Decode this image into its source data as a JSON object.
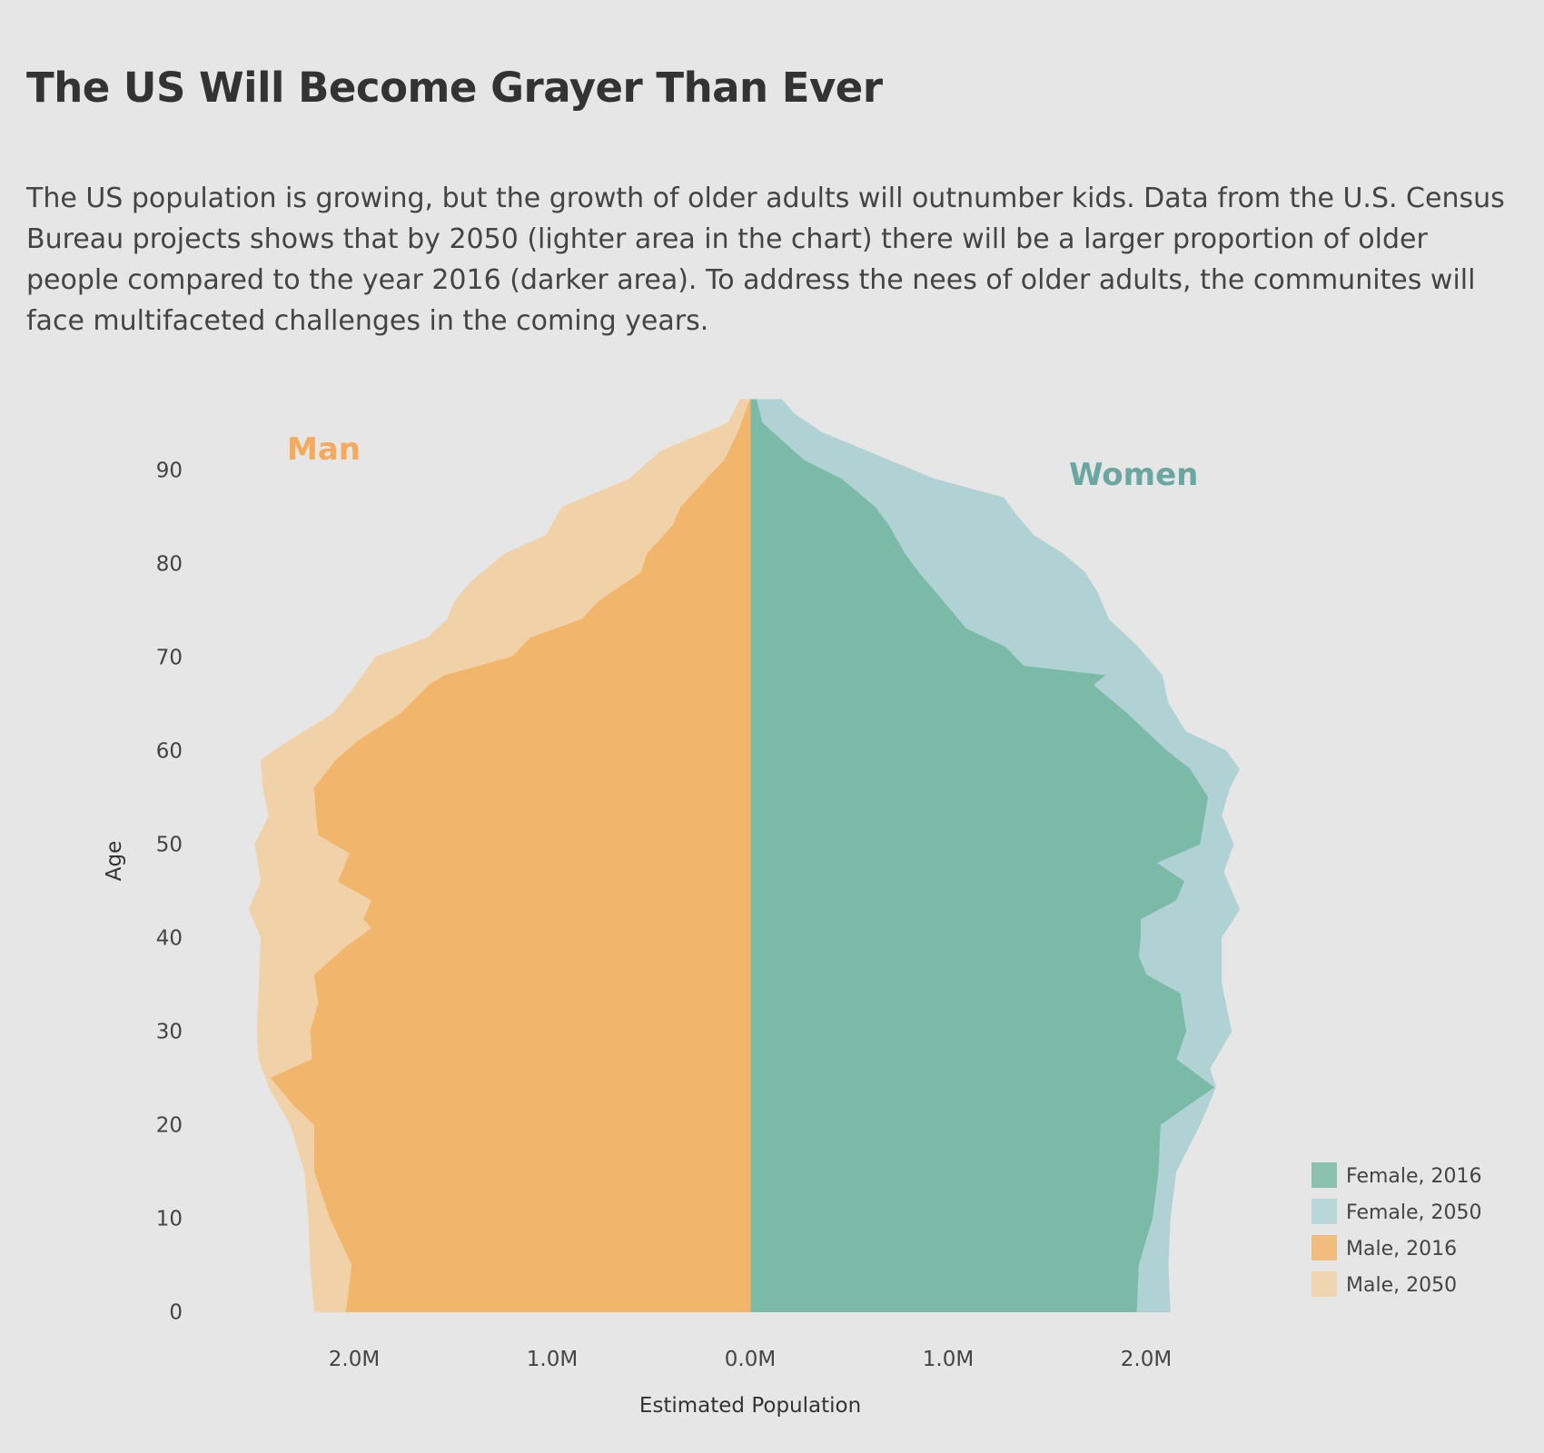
{
  "title": "The US Will Become Grayer Than Ever",
  "subtitle": "The US population is growing, but the growth of older adults will outnumber kids. Data from the U.S. Census Bureau projects shows that by 2050 (lighter area in the chart) there will be a larger proportion of older people compared to the year 2016 (darker area). To address the nees of older adults,  the communites will face multifaceted challenges in the coming years.",
  "colors": {
    "background": "#e6e6e6",
    "female_2016": "#7bbaa6",
    "female_2050": "#b0d2d5",
    "male_2016": "#f1b56c",
    "male_2050": "#f1d1a7",
    "man_label": "#f5a95a",
    "women_label": "#6aa7a1"
  },
  "chart_data": {
    "type": "area",
    "chart_kind": "population pyramid",
    "side_labels": {
      "left": "Man",
      "right": "Women"
    },
    "xlabel": "Estimated Population",
    "ylabel": "Age",
    "x_ticks": [
      "2.0M",
      "1.0M",
      "0.0M",
      "1.0M",
      "2.0M"
    ],
    "y_ticks": [
      0,
      10,
      20,
      30,
      40,
      50,
      60,
      70,
      80,
      90
    ],
    "xlim_millions": [
      -2.45,
      2.45
    ],
    "ylim": [
      -1.5,
      97.5
    ],
    "legend_position": "bottom-right",
    "legend": [
      "Female, 2016",
      "Female, 2050",
      "Male, 2016",
      "Male, 2050"
    ],
    "units": "millions of people",
    "series": [
      {
        "name": "Female, 2016",
        "side": "right",
        "points": [
          [
            0,
            1.95
          ],
          [
            5,
            1.96
          ],
          [
            10,
            2.03
          ],
          [
            15,
            2.06
          ],
          [
            20,
            2.07
          ],
          [
            24,
            2.34
          ],
          [
            27,
            2.15
          ],
          [
            30,
            2.2
          ],
          [
            34,
            2.17
          ],
          [
            36,
            2.0
          ],
          [
            38,
            1.96
          ],
          [
            40,
            1.97
          ],
          [
            42,
            1.97
          ],
          [
            44,
            2.15
          ],
          [
            46,
            2.19
          ],
          [
            48,
            2.05
          ],
          [
            50,
            2.27
          ],
          [
            55,
            2.31
          ],
          [
            58,
            2.22
          ],
          [
            60,
            2.1
          ],
          [
            64,
            1.9
          ],
          [
            67,
            1.73
          ],
          [
            68,
            1.79
          ],
          [
            69,
            1.38
          ],
          [
            71,
            1.29
          ],
          [
            73,
            1.09
          ],
          [
            76,
            0.97
          ],
          [
            79,
            0.85
          ],
          [
            81,
            0.78
          ],
          [
            84,
            0.7
          ],
          [
            86,
            0.63
          ],
          [
            89,
            0.46
          ],
          [
            91,
            0.27
          ],
          [
            95,
            0.06
          ],
          [
            97.5,
            0.03
          ]
        ]
      },
      {
        "name": "Female, 2050",
        "side": "right",
        "points": [
          [
            0,
            2.12
          ],
          [
            5,
            2.11
          ],
          [
            10,
            2.12
          ],
          [
            15,
            2.15
          ],
          [
            20,
            2.27
          ],
          [
            24,
            2.35
          ],
          [
            26,
            2.32
          ],
          [
            30,
            2.43
          ],
          [
            35,
            2.38
          ],
          [
            40,
            2.38
          ],
          [
            43,
            2.47
          ],
          [
            47,
            2.39
          ],
          [
            50,
            2.44
          ],
          [
            53,
            2.38
          ],
          [
            56,
            2.42
          ],
          [
            58,
            2.47
          ],
          [
            60,
            2.4
          ],
          [
            62,
            2.2
          ],
          [
            65,
            2.11
          ],
          [
            68,
            2.08
          ],
          [
            71,
            1.96
          ],
          [
            74,
            1.81
          ],
          [
            77,
            1.75
          ],
          [
            79,
            1.69
          ],
          [
            81,
            1.58
          ],
          [
            83,
            1.43
          ],
          [
            85,
            1.35
          ],
          [
            87,
            1.28
          ],
          [
            89,
            0.93
          ],
          [
            91,
            0.7
          ],
          [
            94,
            0.36
          ],
          [
            96,
            0.22
          ],
          [
            97.5,
            0.16
          ]
        ]
      },
      {
        "name": "Male, 2016",
        "side": "left",
        "points": [
          [
            0,
            2.04
          ],
          [
            5,
            2.01
          ],
          [
            10,
            2.12
          ],
          [
            15,
            2.2
          ],
          [
            20,
            2.2
          ],
          [
            22,
            2.3
          ],
          [
            25,
            2.42
          ],
          [
            27,
            2.21
          ],
          [
            30,
            2.22
          ],
          [
            33,
            2.18
          ],
          [
            36,
            2.2
          ],
          [
            39,
            2.04
          ],
          [
            41,
            1.91
          ],
          [
            42,
            1.95
          ],
          [
            44,
            1.91
          ],
          [
            46,
            2.08
          ],
          [
            49,
            2.02
          ],
          [
            51,
            2.18
          ],
          [
            53,
            2.19
          ],
          [
            56,
            2.2
          ],
          [
            59,
            2.09
          ],
          [
            61,
            1.98
          ],
          [
            64,
            1.76
          ],
          [
            67,
            1.62
          ],
          [
            68,
            1.54
          ],
          [
            70,
            1.2
          ],
          [
            72,
            1.11
          ],
          [
            74,
            0.85
          ],
          [
            76,
            0.76
          ],
          [
            79,
            0.55
          ],
          [
            81,
            0.52
          ],
          [
            84,
            0.39
          ],
          [
            86,
            0.35
          ],
          [
            89,
            0.22
          ],
          [
            91,
            0.13
          ],
          [
            94,
            0.06
          ],
          [
            97.5,
            0.0
          ]
        ]
      },
      {
        "name": "Male, 2050",
        "side": "left",
        "points": [
          [
            0,
            2.2
          ],
          [
            5,
            2.22
          ],
          [
            10,
            2.23
          ],
          [
            15,
            2.25
          ],
          [
            20,
            2.32
          ],
          [
            24,
            2.43
          ],
          [
            27,
            2.48
          ],
          [
            30,
            2.49
          ],
          [
            35,
            2.48
          ],
          [
            40,
            2.47
          ],
          [
            43,
            2.53
          ],
          [
            46,
            2.47
          ],
          [
            50,
            2.5
          ],
          [
            53,
            2.43
          ],
          [
            56,
            2.46
          ],
          [
            59,
            2.47
          ],
          [
            61,
            2.33
          ],
          [
            64,
            2.1
          ],
          [
            67,
            1.99
          ],
          [
            70,
            1.89
          ],
          [
            72,
            1.63
          ],
          [
            74,
            1.53
          ],
          [
            76,
            1.49
          ],
          [
            78,
            1.41
          ],
          [
            81,
            1.24
          ],
          [
            83,
            1.03
          ],
          [
            86,
            0.95
          ],
          [
            89,
            0.61
          ],
          [
            92,
            0.45
          ],
          [
            95,
            0.11
          ],
          [
            97.5,
            0.05
          ]
        ]
      }
    ]
  }
}
